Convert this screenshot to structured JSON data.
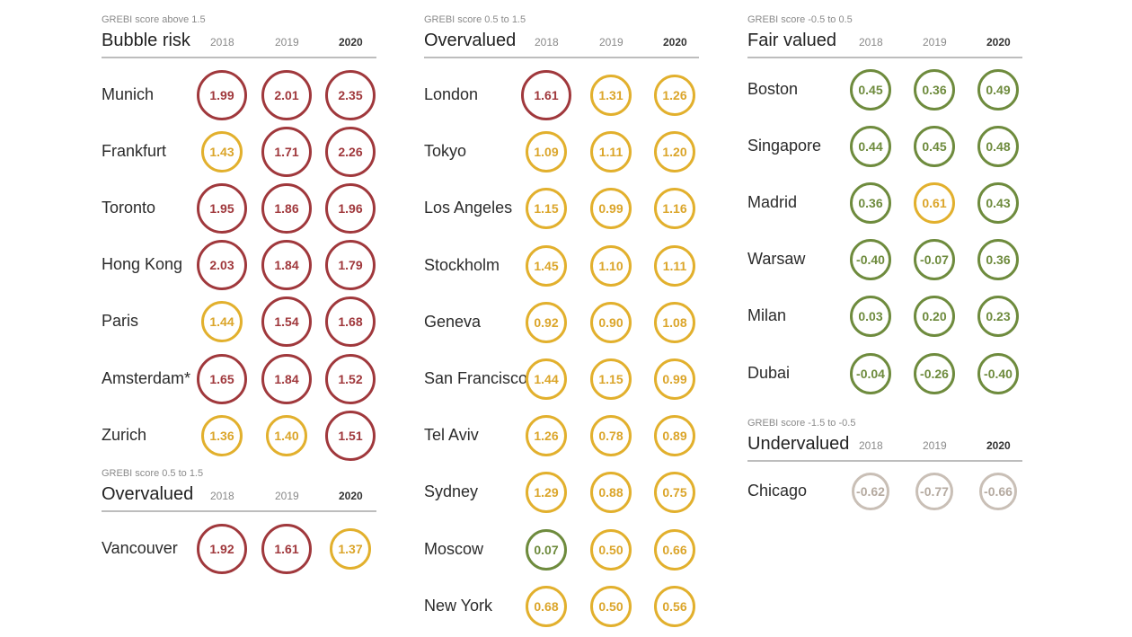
{
  "chart_data": {
    "type": "table",
    "years": [
      "2018",
      "2019",
      "2020"
    ],
    "groups": [
      {
        "id": "bubble-risk",
        "caption": "GREBI score above 1.5",
        "title": "Bubble risk",
        "rows": [
          {
            "city": "Munich",
            "values": [
              "1.99",
              "2.01",
              "2.35"
            ],
            "colors": [
              "red",
              "red",
              "red"
            ]
          },
          {
            "city": "Frankfurt",
            "values": [
              "1.43",
              "1.71",
              "2.26"
            ],
            "colors": [
              "yellow",
              "red",
              "red"
            ]
          },
          {
            "city": "Toronto",
            "values": [
              "1.95",
              "1.86",
              "1.96"
            ],
            "colors": [
              "red",
              "red",
              "red"
            ]
          },
          {
            "city": "Hong Kong",
            "values": [
              "2.03",
              "1.84",
              "1.79"
            ],
            "colors": [
              "red",
              "red",
              "red"
            ]
          },
          {
            "city": "Paris",
            "values": [
              "1.44",
              "1.54",
              "1.68"
            ],
            "colors": [
              "yellow",
              "red",
              "red"
            ]
          },
          {
            "city": "Amsterdam*",
            "values": [
              "1.65",
              "1.84",
              "1.52"
            ],
            "colors": [
              "red",
              "red",
              "red"
            ]
          },
          {
            "city": "Zurich",
            "values": [
              "1.36",
              "1.40",
              "1.51"
            ],
            "colors": [
              "yellow",
              "yellow",
              "red"
            ]
          }
        ]
      },
      {
        "id": "overvalued-left",
        "caption": "GREBI score 0.5 to 1.5",
        "title": "Overvalued",
        "rows": [
          {
            "city": "Vancouver",
            "values": [
              "1.92",
              "1.61",
              "1.37"
            ],
            "colors": [
              "red",
              "red",
              "yellow"
            ]
          }
        ]
      },
      {
        "id": "overvalued-mid",
        "caption": "GREBI score 0.5 to 1.5",
        "title": "Overvalued",
        "rows": [
          {
            "city": "London",
            "values": [
              "1.61",
              "1.31",
              "1.26"
            ],
            "colors": [
              "red",
              "yellow",
              "yellow"
            ]
          },
          {
            "city": "Tokyo",
            "values": [
              "1.09",
              "1.11",
              "1.20"
            ],
            "colors": [
              "yellow",
              "yellow",
              "yellow"
            ]
          },
          {
            "city": "Los Angeles",
            "values": [
              "1.15",
              "0.99",
              "1.16"
            ],
            "colors": [
              "yellow",
              "yellow",
              "yellow"
            ]
          },
          {
            "city": "Stockholm",
            "values": [
              "1.45",
              "1.10",
              "1.11"
            ],
            "colors": [
              "yellow",
              "yellow",
              "yellow"
            ]
          },
          {
            "city": "Geneva",
            "values": [
              "0.92",
              "0.90",
              "1.08"
            ],
            "colors": [
              "yellow",
              "yellow",
              "yellow"
            ]
          },
          {
            "city": "San Francisco",
            "values": [
              "1.44",
              "1.15",
              "0.99"
            ],
            "colors": [
              "yellow",
              "yellow",
              "yellow"
            ]
          },
          {
            "city": "Tel Aviv",
            "values": [
              "1.26",
              "0.78",
              "0.89"
            ],
            "colors": [
              "yellow",
              "yellow",
              "yellow"
            ]
          },
          {
            "city": "Sydney",
            "values": [
              "1.29",
              "0.88",
              "0.75"
            ],
            "colors": [
              "yellow",
              "yellow",
              "yellow"
            ]
          },
          {
            "city": "Moscow",
            "values": [
              "0.07",
              "0.50",
              "0.66"
            ],
            "colors": [
              "green",
              "yellow",
              "yellow"
            ]
          },
          {
            "city": "New York",
            "values": [
              "0.68",
              "0.50",
              "0.56"
            ],
            "colors": [
              "yellow",
              "yellow",
              "yellow"
            ]
          }
        ]
      },
      {
        "id": "fair-valued",
        "caption": "GREBI score -0.5 to 0.5",
        "title": "Fair valued",
        "rows": [
          {
            "city": "Boston",
            "values": [
              "0.45",
              "0.36",
              "0.49"
            ],
            "colors": [
              "green",
              "green",
              "green"
            ]
          },
          {
            "city": "Singapore",
            "values": [
              "0.44",
              "0.45",
              "0.48"
            ],
            "colors": [
              "green",
              "green",
              "green"
            ]
          },
          {
            "city": "Madrid",
            "values": [
              "0.36",
              "0.61",
              "0.43"
            ],
            "colors": [
              "green",
              "yellow",
              "green"
            ]
          },
          {
            "city": "Warsaw",
            "values": [
              "-0.40",
              "-0.07",
              "0.36"
            ],
            "colors": [
              "green",
              "green",
              "green"
            ]
          },
          {
            "city": "Milan",
            "values": [
              "0.03",
              "0.20",
              "0.23"
            ],
            "colors": [
              "green",
              "green",
              "green"
            ]
          },
          {
            "city": "Dubai",
            "values": [
              "-0.04",
              "-0.26",
              "-0.40"
            ],
            "colors": [
              "green",
              "green",
              "green"
            ]
          }
        ]
      },
      {
        "id": "undervalued",
        "caption": "GREBI score -1.5 to -0.5",
        "title": "Undervalued",
        "rows": [
          {
            "city": "Chicago",
            "values": [
              "-0.62",
              "-0.77",
              "-0.66"
            ],
            "colors": [
              "gray",
              "gray",
              "gray"
            ]
          }
        ]
      }
    ],
    "colors": {
      "red": "#a0383c",
      "yellow": "#e2b02d",
      "green": "#6e8b3d",
      "gray": "#c9bfb6"
    }
  }
}
